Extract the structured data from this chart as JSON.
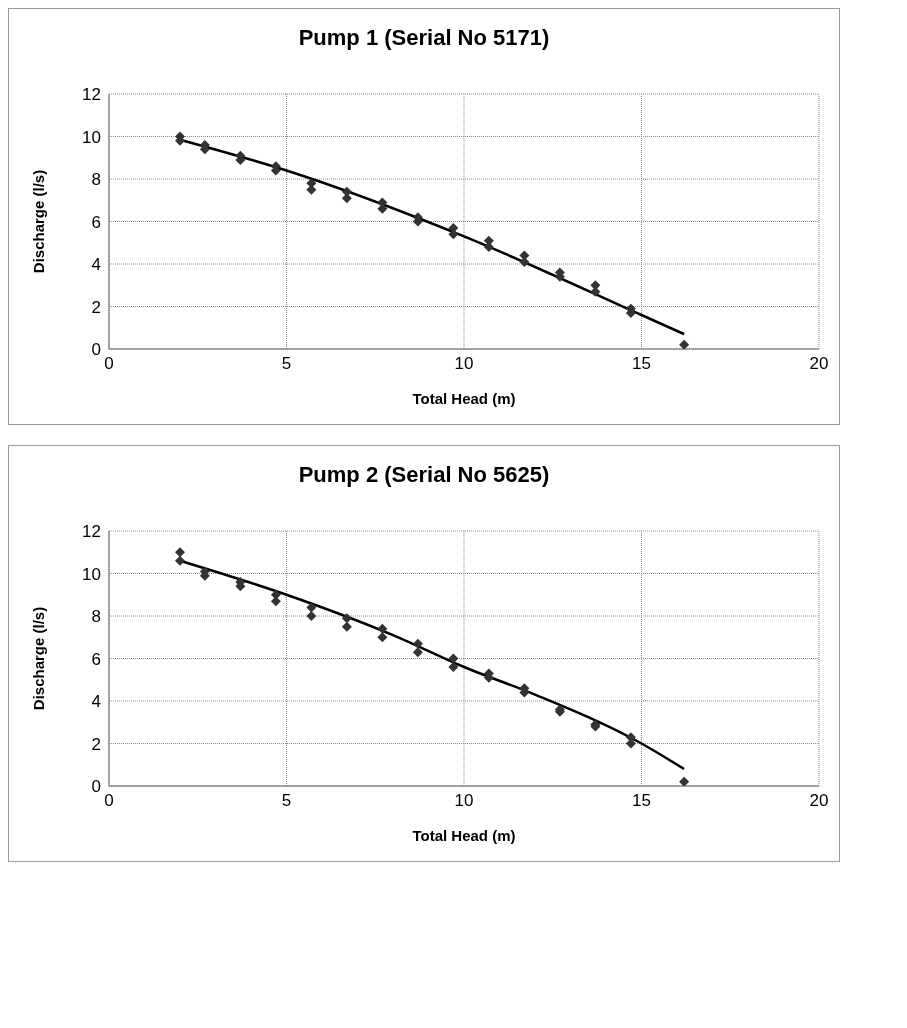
{
  "chart_data": [
    {
      "type": "scatter",
      "title": "Pump 1 (Serial No 5171)",
      "xlabel": "Total Head (m)",
      "ylabel": "Discharge (l/s)",
      "xlim": [
        0,
        20
      ],
      "xticks": [
        0,
        5,
        10,
        15,
        20
      ],
      "ylim": [
        0,
        12
      ],
      "yticks": [
        0,
        2,
        4,
        6,
        8,
        10,
        12
      ],
      "grid": true,
      "legend": false,
      "marker": "diamond",
      "series": [
        {
          "color": "#333333",
          "x": [
            2,
            2,
            2.7,
            2.7,
            3.7,
            3.7,
            4.7,
            4.7,
            5.7,
            5.7,
            6.7,
            6.7,
            7.7,
            7.7,
            8.7,
            8.7,
            9.7,
            9.7,
            10.7,
            10.7,
            11.7,
            11.7,
            12.7,
            12.7,
            13.7,
            13.7,
            14.7,
            14.7,
            16.2
          ],
          "values": [
            10.0,
            9.8,
            9.6,
            9.4,
            9.1,
            8.9,
            8.6,
            8.4,
            7.8,
            7.5,
            7.4,
            7.1,
            6.9,
            6.6,
            6.2,
            6.0,
            5.7,
            5.4,
            5.1,
            4.8,
            4.4,
            4.1,
            3.6,
            3.4,
            3.0,
            2.7,
            1.9,
            1.7,
            0.2
          ]
        },
        {
          "type": "line",
          "color": "#000000",
          "line_style": "solid",
          "marker": "none",
          "x": [
            2,
            5,
            10,
            15,
            16.2
          ],
          "values": [
            9.85,
            8.4,
            5.3,
            1.6,
            0.7
          ]
        }
      ]
    },
    {
      "type": "scatter",
      "title": "Pump 2 (Serial No 5625)",
      "xlabel": "Total Head (m)",
      "ylabel": "Discharge (l/s)",
      "xlim": [
        0,
        20
      ],
      "xticks": [
        0,
        5,
        10,
        15,
        20
      ],
      "ylim": [
        0,
        12
      ],
      "yticks": [
        0,
        2,
        4,
        6,
        8,
        10,
        12
      ],
      "grid": true,
      "legend": false,
      "marker": "diamond",
      "series": [
        {
          "color": "#333333",
          "x": [
            2,
            2,
            2.7,
            2.7,
            3.7,
            3.7,
            4.7,
            4.7,
            5.7,
            5.7,
            6.7,
            6.7,
            7.7,
            7.7,
            8.7,
            8.7,
            9.7,
            9.7,
            10.7,
            10.7,
            11.7,
            11.7,
            12.7,
            12.7,
            13.7,
            13.7,
            14.7,
            14.7,
            16.2
          ],
          "values": [
            11.0,
            10.6,
            10.1,
            9.9,
            9.6,
            9.4,
            9.0,
            8.7,
            8.4,
            8.0,
            7.9,
            7.5,
            7.4,
            7.0,
            6.7,
            6.3,
            6.0,
            5.6,
            5.3,
            5.1,
            4.6,
            4.4,
            3.6,
            3.5,
            2.9,
            2.8,
            2.3,
            2.0,
            0.2
          ]
        },
        {
          "type": "line",
          "color": "#000000",
          "line_style": "solid",
          "marker": "none",
          "x": [
            2,
            5,
            8,
            10,
            12,
            15,
            16.2
          ],
          "values": [
            10.6,
            9.0,
            7.1,
            5.6,
            4.3,
            2.0,
            0.8
          ]
        }
      ]
    }
  ]
}
